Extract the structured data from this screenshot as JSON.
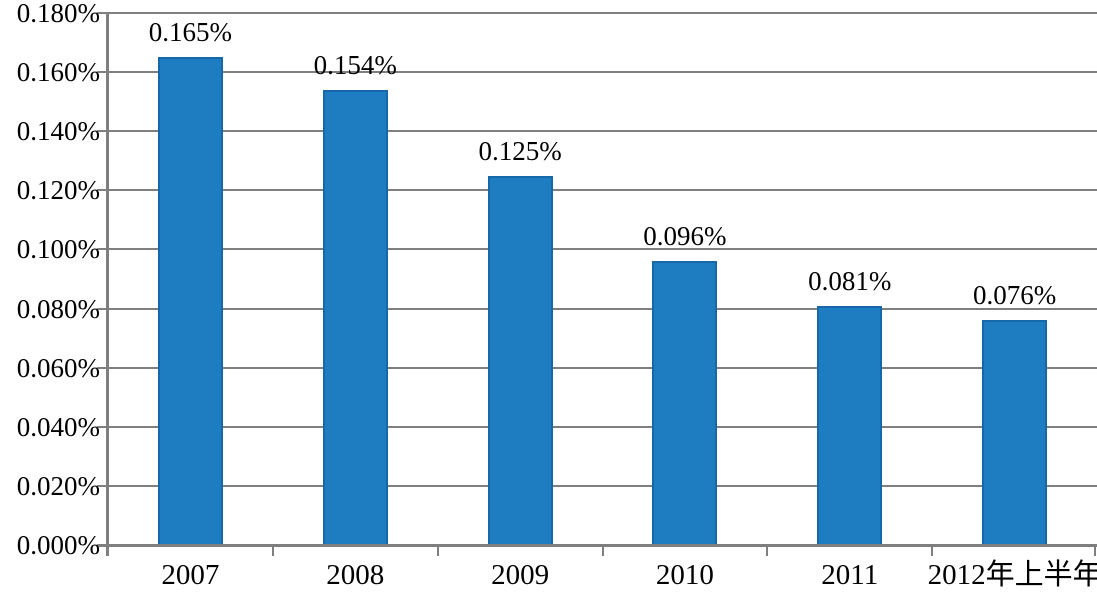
{
  "chart_data": {
    "type": "bar",
    "title": "",
    "xlabel": "",
    "ylabel": "",
    "categories": [
      "2007",
      "2008",
      "2009",
      "2010",
      "2011",
      "2012年上半年"
    ],
    "values": [
      0.165,
      0.154,
      0.125,
      0.096,
      0.081,
      0.076
    ],
    "bar_labels": [
      "0.165%",
      "0.154%",
      "0.125%",
      "0.096%",
      "0.081%",
      "0.076%"
    ],
    "y_tick_labels": [
      "0.180%",
      "0.160%",
      "0.140%",
      "0.120%",
      "0.100%",
      "0.080%",
      "0.060%",
      "0.040%",
      "0.020%",
      "0.000%"
    ],
    "ylim": [
      0,
      0.18
    ],
    "y_step": 0.02,
    "grid": true,
    "legend_position": "none"
  },
  "colors": {
    "bar_fill": "#1e7cc1",
    "bar_border": "#1668a8",
    "gridline": "#7f7f7f",
    "axis": "#7f7f7f",
    "text": "#000000",
    "background": "#ffffff"
  }
}
